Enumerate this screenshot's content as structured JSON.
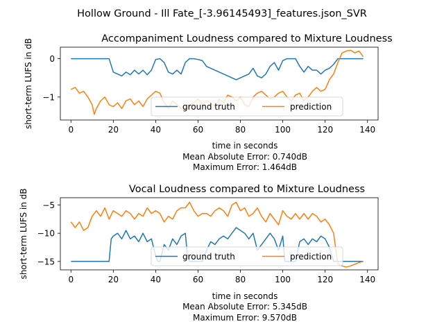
{
  "figure": {
    "suptitle": "Hollow Ground - Ill Fate_[-3.96145493]_features.json_SVR"
  },
  "chart_data": [
    {
      "type": "line",
      "title": "Accompaniment Loudness compared to Mixture Loudness",
      "xlabel": "time in seconds",
      "ylabel": "short-term LUFS in dB",
      "xlim": [
        -5,
        145
      ],
      "ylim": [
        -1.6,
        0.3
      ],
      "xticks": [
        0,
        20,
        40,
        60,
        80,
        100,
        120,
        140
      ],
      "yticks": [
        -1,
        0
      ],
      "legend": "lower-center",
      "stats": [
        "Mean Absolute Error: 0.740dB",
        "Maximum Error: 1.464dB"
      ],
      "series": [
        {
          "name": "ground truth",
          "color": "#1f77b4",
          "x": [
            0,
            4,
            8,
            12,
            16,
            18,
            20,
            22,
            24,
            26,
            28,
            30,
            32,
            34,
            36,
            38,
            40,
            42,
            44,
            46,
            48,
            50,
            52,
            54,
            56,
            58,
            60,
            62,
            64,
            66,
            68,
            70,
            72,
            74,
            76,
            78,
            80,
            82,
            84,
            86,
            88,
            90,
            92,
            94,
            96,
            98,
            100,
            102,
            104,
            106,
            108,
            110,
            112,
            114,
            116,
            118,
            120,
            122,
            124,
            126,
            130,
            134,
            138
          ],
          "y": [
            0,
            0,
            0,
            0,
            0,
            0,
            -0.35,
            -0.4,
            -0.45,
            -0.35,
            -0.42,
            -0.3,
            -0.4,
            -0.3,
            -0.42,
            -0.3,
            -0.02,
            0,
            -0.1,
            -0.35,
            -0.4,
            -0.3,
            -0.4,
            -0.1,
            0,
            0,
            -0.02,
            -0.05,
            -0.2,
            -0.25,
            -0.3,
            -0.35,
            -0.4,
            -0.45,
            -0.5,
            -0.55,
            -0.5,
            -0.45,
            -0.4,
            -0.25,
            -0.45,
            -0.5,
            -0.4,
            -0.2,
            -0.1,
            -0.3,
            -0.05,
            0,
            0,
            0,
            -0.2,
            -0.35,
            -0.2,
            -0.3,
            -0.3,
            -0.4,
            -0.3,
            -0.25,
            -0.15,
            0,
            0,
            0,
            0
          ]
        },
        {
          "name": "prediction",
          "color": "#ff7f0e",
          "x": [
            0,
            2,
            4,
            6,
            8,
            10,
            11,
            12,
            14,
            16,
            18,
            20,
            22,
            24,
            26,
            28,
            30,
            32,
            34,
            36,
            38,
            40,
            42,
            44,
            46,
            48,
            50,
            52,
            54,
            56,
            58,
            60,
            62,
            64,
            66,
            68,
            70,
            72,
            74,
            76,
            78,
            80,
            82,
            84,
            86,
            88,
            90,
            92,
            94,
            96,
            98,
            100,
            102,
            104,
            106,
            108,
            110,
            112,
            114,
            116,
            118,
            120,
            122,
            124,
            126,
            128,
            130,
            132,
            134,
            136,
            138
          ],
          "y": [
            -0.8,
            -0.75,
            -0.9,
            -0.85,
            -1.0,
            -1.2,
            -1.45,
            -1.3,
            -1.1,
            -1.0,
            -1.2,
            -1.25,
            -1.15,
            -1.3,
            -1.1,
            -1.05,
            -1.2,
            -1.1,
            -1.25,
            -1.05,
            -0.95,
            -0.85,
            -0.9,
            -1.15,
            -1.3,
            -1.1,
            -1.2,
            -1.3,
            -1.35,
            -1.25,
            -1.15,
            -1.05,
            -1.2,
            -1.1,
            -1.15,
            -1.25,
            -1.05,
            -1.15,
            -0.95,
            -1.0,
            -1.1,
            -1.0,
            -1.2,
            -1.25,
            -1.0,
            -0.9,
            -0.85,
            -0.95,
            -1.05,
            -1.0,
            -0.9,
            -0.85,
            -1.0,
            -1.1,
            -0.95,
            -0.9,
            -1.1,
            -1.0,
            -0.85,
            -0.75,
            -0.85,
            -0.8,
            -0.55,
            -0.4,
            -0.1,
            0.15,
            0.2,
            0.22,
            0.15,
            0.2,
            0.05
          ]
        }
      ]
    },
    {
      "type": "line",
      "title": "Vocal Loudness compared to Mixture Loudness",
      "xlabel": "time in seconds",
      "ylabel": "short-term LUFS in dB",
      "xlim": [
        -5,
        145
      ],
      "ylim": [
        -16.5,
        -3.7
      ],
      "xticks": [
        0,
        20,
        40,
        60,
        80,
        100,
        120,
        140
      ],
      "yticks": [
        -15,
        -10,
        -5
      ],
      "legend": "lower-center",
      "stats": [
        "Mean Absolute Error: 5.345dB",
        "Maximum Error: 9.570dB"
      ],
      "series": [
        {
          "name": "ground truth",
          "color": "#1f77b4",
          "x": [
            0,
            4,
            8,
            12,
            16,
            18,
            19,
            20,
            22,
            24,
            26,
            28,
            30,
            32,
            34,
            36,
            38,
            40,
            41,
            42,
            44,
            46,
            48,
            50,
            52,
            54,
            55,
            56,
            58,
            60,
            62,
            64,
            66,
            68,
            70,
            72,
            74,
            76,
            78,
            80,
            82,
            84,
            86,
            88,
            90,
            92,
            94,
            96,
            98,
            100,
            101,
            102,
            104,
            106,
            108,
            110,
            112,
            114,
            116,
            118,
            120,
            122,
            124,
            126,
            130,
            134,
            138
          ],
          "y": [
            -15,
            -15,
            -15,
            -15,
            -15,
            -15,
            -11,
            -10.5,
            -10,
            -11,
            -9.5,
            -11,
            -10.5,
            -11.5,
            -10,
            -11.5,
            -11,
            -14,
            -15,
            -15,
            -12,
            -13,
            -11,
            -12,
            -10.5,
            -10,
            -14,
            -15,
            -15,
            -15,
            -15,
            -13,
            -11.5,
            -12,
            -11,
            -10.5,
            -11,
            -10,
            -9,
            -9.5,
            -10,
            -11,
            -10,
            -13,
            -12,
            -11,
            -10,
            -11,
            -13,
            -10.5,
            -15,
            -15,
            -15,
            -15,
            -11.5,
            -11,
            -12,
            -11,
            -11.5,
            -10.5,
            -11,
            -12.5,
            -15,
            -15,
            -15,
            -15,
            -15
          ]
        },
        {
          "name": "prediction",
          "color": "#ff7f0e",
          "x": [
            0,
            2,
            4,
            6,
            8,
            10,
            12,
            14,
            16,
            18,
            20,
            22,
            24,
            26,
            28,
            30,
            32,
            34,
            36,
            38,
            40,
            42,
            44,
            46,
            48,
            50,
            52,
            54,
            56,
            58,
            60,
            62,
            64,
            66,
            68,
            70,
            72,
            74,
            76,
            78,
            80,
            82,
            84,
            86,
            88,
            90,
            92,
            94,
            96,
            98,
            100,
            102,
            104,
            106,
            108,
            110,
            112,
            114,
            116,
            118,
            120,
            122,
            124,
            126,
            128,
            130,
            132,
            134,
            136,
            138
          ],
          "y": [
            -8,
            -9,
            -8,
            -9.5,
            -9,
            -7,
            -6,
            -7,
            -5.5,
            -7.5,
            -6,
            -6.5,
            -7,
            -6,
            -6.5,
            -7.5,
            -6.5,
            -7,
            -5.5,
            -6.5,
            -6,
            -6.5,
            -8,
            -7,
            -7.5,
            -6,
            -5.5,
            -5.5,
            -4.5,
            -6,
            -7,
            -6.5,
            -6.5,
            -7,
            -6,
            -5.5,
            -6,
            -7,
            -5,
            -4.5,
            -6,
            -5.5,
            -7,
            -6.5,
            -5.5,
            -7,
            -8,
            -6.5,
            -7.5,
            -8.5,
            -6,
            -7,
            -7.5,
            -6.5,
            -7.5,
            -6.5,
            -7.5,
            -6.5,
            -7,
            -8,
            -7.5,
            -8.5,
            -10,
            -15.5,
            -15.8,
            -16,
            -15.8,
            -15.5,
            -15.2,
            -15
          ]
        }
      ]
    }
  ]
}
